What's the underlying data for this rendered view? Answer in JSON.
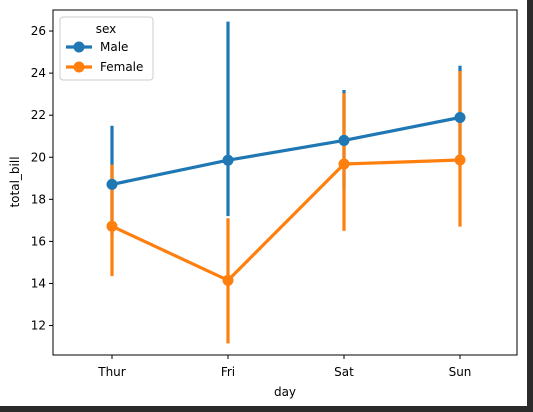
{
  "chart_data": {
    "type": "line",
    "categories": [
      "Thur",
      "Fri",
      "Sat",
      "Sun"
    ],
    "xlabel": "day",
    "ylabel": "total_bill",
    "ylim": [
      10.6,
      27.0
    ],
    "yticks": [
      12,
      14,
      16,
      18,
      20,
      22,
      24,
      26
    ],
    "grid": false,
    "legend": {
      "title": "sex",
      "placement": "top-left"
    },
    "series": [
      {
        "name": "Male",
        "color": "#1f77b4",
        "values": [
          18.71,
          19.86,
          20.8,
          21.89
        ],
        "ci_low": [
          16.3,
          17.2,
          18.5,
          19.7
        ],
        "ci_high": [
          21.5,
          26.45,
          23.2,
          24.35
        ]
      },
      {
        "name": "Female",
        "color": "#ff7f0e",
        "values": [
          16.72,
          14.15,
          19.68,
          19.87
        ],
        "ci_low": [
          14.35,
          11.15,
          16.5,
          16.7
        ],
        "ci_high": [
          19.65,
          17.1,
          23.05,
          24.1
        ]
      }
    ]
  }
}
